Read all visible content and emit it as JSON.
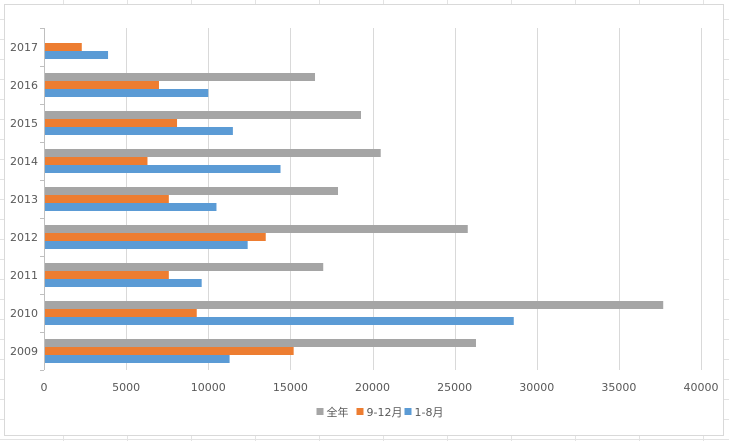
{
  "chart_data": {
    "type": "bar",
    "orientation": "horizontal",
    "categories": [
      "2009",
      "2010",
      "2011",
      "2012",
      "2013",
      "2014",
      "2015",
      "2016",
      "2017"
    ],
    "series": [
      {
        "name": "全年",
        "color": "#a5a5a5",
        "values": [
          26300,
          37700,
          17000,
          25800,
          17900,
          20500,
          19300,
          16500,
          null
        ]
      },
      {
        "name": "9-12月",
        "color": "#ed7d31",
        "values": [
          15200,
          9300,
          7600,
          13500,
          7600,
          6300,
          8100,
          7000,
          2300
        ]
      },
      {
        "name": "1-8月",
        "color": "#5b9bd5",
        "values": [
          11300,
          28600,
          9600,
          12400,
          10500,
          14400,
          11500,
          10000,
          3900
        ]
      }
    ],
    "xlim": [
      0,
      40000
    ],
    "xticks": [
      "0",
      "5000",
      "10000",
      "15000",
      "20000",
      "25000",
      "30000",
      "35000",
      "40000"
    ],
    "grid": true,
    "legend": "bottom"
  }
}
